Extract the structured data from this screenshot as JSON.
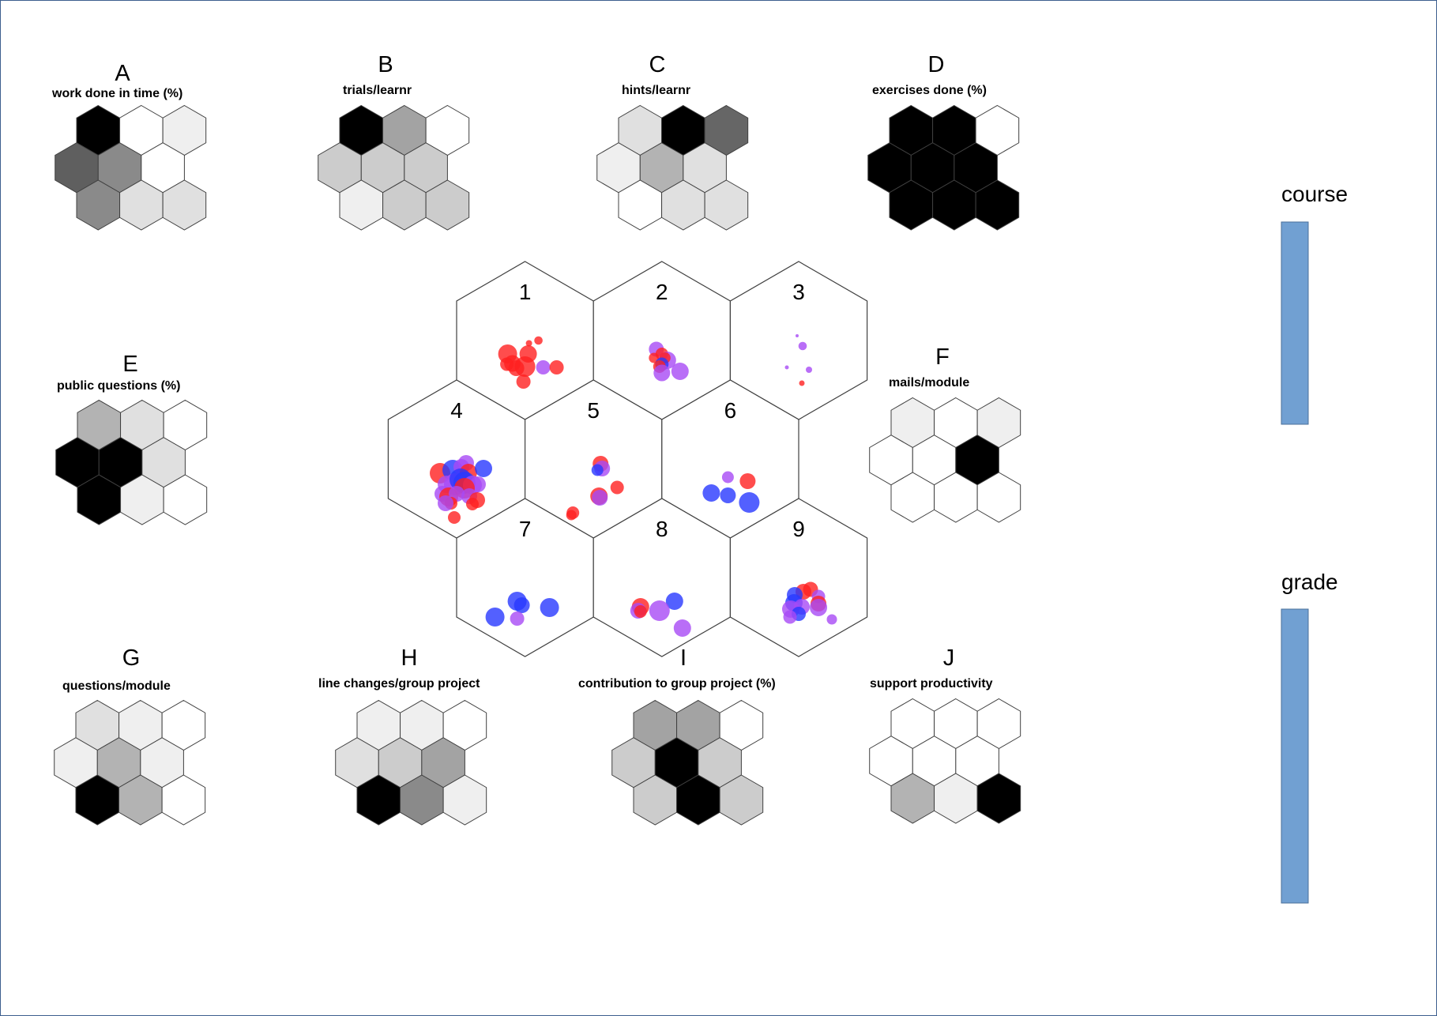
{
  "colors": {
    "hex_stroke": "#404040",
    "legend_bar_fill": "#71a0d2",
    "legend_bar_stroke": "#4a6f99",
    "frame_border": "#3d5f8e",
    "dot_red": "#ff2020",
    "dot_purple": "#a84af5",
    "dot_blue": "#2838ff"
  },
  "component_planes": [
    {
      "letter": "A",
      "caption": "work done in time (%)",
      "shades": [
        "#000000",
        "#ffffff",
        "#efefef",
        "#5f5f5f",
        "#8a8a8a",
        "#ffffff",
        "#8a8a8a",
        "#e0e0e0",
        "#e0e0e0"
      ]
    },
    {
      "letter": "B",
      "caption": "trials/learnr",
      "shades": [
        "#000000",
        "#a3a3a3",
        "#ffffff",
        "#cccccc",
        "#cccccc",
        "#cccccc",
        "#efefef",
        "#cccccc",
        "#cccccc"
      ]
    },
    {
      "letter": "C",
      "caption": "hints/learnr",
      "shades": [
        "#e0e0e0",
        "#000000",
        "#666666",
        "#efefef",
        "#b3b3b3",
        "#e0e0e0",
        "#ffffff",
        "#e0e0e0",
        "#e0e0e0"
      ]
    },
    {
      "letter": "D",
      "caption": "exercises done (%)",
      "shades": [
        "#000000",
        "#000000",
        "#ffffff",
        "#000000",
        "#000000",
        "#000000",
        "#000000",
        "#000000",
        "#000000"
      ]
    },
    {
      "letter": "E",
      "caption": "public questions (%)",
      "shades": [
        "#b3b3b3",
        "#e0e0e0",
        "#ffffff",
        "#000000",
        "#000000",
        "#e0e0e0",
        "#000000",
        "#efefef",
        "#ffffff"
      ]
    },
    {
      "letter": "F",
      "caption": "mails/module",
      "shades": [
        "#efefef",
        "#ffffff",
        "#efefef",
        "#ffffff",
        "#ffffff",
        "#000000",
        "#ffffff",
        "#ffffff",
        "#ffffff"
      ]
    },
    {
      "letter": "G",
      "caption": "questions/module",
      "shades": [
        "#e0e0e0",
        "#efefef",
        "#ffffff",
        "#efefef",
        "#b3b3b3",
        "#efefef",
        "#000000",
        "#b3b3b3",
        "#ffffff"
      ]
    },
    {
      "letter": "H",
      "caption": "line changes/group project",
      "shades": [
        "#efefef",
        "#efefef",
        "#ffffff",
        "#e0e0e0",
        "#cccccc",
        "#a3a3a3",
        "#000000",
        "#8a8a8a",
        "#efefef"
      ]
    },
    {
      "letter": "I",
      "caption": "contribution to group project (%)",
      "shades": [
        "#a3a3a3",
        "#a3a3a3",
        "#ffffff",
        "#cccccc",
        "#000000",
        "#cccccc",
        "#cccccc",
        "#000000",
        "#cccccc"
      ]
    },
    {
      "letter": "J",
      "caption": "support productivity",
      "shades": [
        "#ffffff",
        "#ffffff",
        "#ffffff",
        "#ffffff",
        "#ffffff",
        "#ffffff",
        "#b3b3b3",
        "#efefef",
        "#000000"
      ]
    }
  ],
  "som_map": {
    "cells": [
      {
        "number": "1",
        "dots": [
          {
            "dx": 0.17,
            "dy": 0.0,
            "r": 0.053,
            "c": "red"
          },
          {
            "dx": 0.05,
            "dy": 0.035,
            "r": 0.04,
            "c": "red"
          },
          {
            "dx": -0.22,
            "dy": 0.17,
            "r": 0.12,
            "c": "red"
          },
          {
            "dx": 0.04,
            "dy": 0.17,
            "r": 0.11,
            "c": "red"
          },
          {
            "dx": -0.16,
            "dy": 0.29,
            "r": 0.105,
            "c": "red"
          },
          {
            "dx": -0.23,
            "dy": 0.3,
            "r": 0.085,
            "c": "red"
          },
          {
            "dx": -0.11,
            "dy": 0.35,
            "r": 0.1,
            "c": "red"
          },
          {
            "dx": 0.0,
            "dy": 0.33,
            "r": 0.13,
            "c": "red"
          },
          {
            "dx": 0.23,
            "dy": 0.34,
            "r": 0.09,
            "c": "purple"
          },
          {
            "dx": 0.4,
            "dy": 0.34,
            "r": 0.09,
            "c": "red"
          },
          {
            "dx": -0.02,
            "dy": 0.52,
            "r": 0.09,
            "c": "red"
          }
        ]
      },
      {
        "number": "2",
        "dots": [
          {
            "dx": -0.07,
            "dy": 0.11,
            "r": 0.095,
            "c": "purple"
          },
          {
            "dx": 0.0,
            "dy": 0.17,
            "r": 0.08,
            "c": "red"
          },
          {
            "dx": -0.1,
            "dy": 0.22,
            "r": 0.065,
            "c": "red"
          },
          {
            "dx": 0.07,
            "dy": 0.25,
            "r": 0.11,
            "c": "purple"
          },
          {
            "dx": 0.04,
            "dy": 0.22,
            "r": 0.07,
            "c": "red"
          },
          {
            "dx": 0.0,
            "dy": 0.3,
            "r": 0.085,
            "c": "blue"
          },
          {
            "dx": -0.03,
            "dy": 0.33,
            "r": 0.08,
            "c": "red"
          },
          {
            "dx": 0.0,
            "dy": 0.41,
            "r": 0.105,
            "c": "purple"
          },
          {
            "dx": 0.23,
            "dy": 0.39,
            "r": 0.11,
            "c": "purple"
          }
        ]
      },
      {
        "number": "3",
        "dots": [
          {
            "dx": -0.02,
            "dy": -0.06,
            "r": 0.02,
            "c": "purple"
          },
          {
            "dx": 0.05,
            "dy": 0.07,
            "r": 0.053,
            "c": "purple"
          },
          {
            "dx": -0.15,
            "dy": 0.34,
            "r": 0.025,
            "c": "purple"
          },
          {
            "dx": 0.13,
            "dy": 0.37,
            "r": 0.04,
            "c": "purple"
          },
          {
            "dx": 0.04,
            "dy": 0.54,
            "r": 0.035,
            "c": "red"
          }
        ]
      },
      {
        "number": "4",
        "dots": [
          {
            "dx": -0.21,
            "dy": 0.18,
            "r": 0.13,
            "c": "red"
          },
          {
            "dx": -0.05,
            "dy": 0.14,
            "r": 0.13,
            "c": "blue"
          },
          {
            "dx": 0.12,
            "dy": 0.05,
            "r": 0.1,
            "c": "purple"
          },
          {
            "dx": 0.06,
            "dy": 0.1,
            "r": 0.1,
            "c": "purple"
          },
          {
            "dx": 0.15,
            "dy": 0.17,
            "r": 0.11,
            "c": "red"
          },
          {
            "dx": 0.34,
            "dy": 0.12,
            "r": 0.11,
            "c": "blue"
          },
          {
            "dx": -0.13,
            "dy": 0.32,
            "r": 0.11,
            "c": "purple"
          },
          {
            "dx": -0.02,
            "dy": 0.32,
            "r": 0.14,
            "c": "purple"
          },
          {
            "dx": 0.05,
            "dy": 0.26,
            "r": 0.14,
            "c": "blue"
          },
          {
            "dx": 0.1,
            "dy": 0.3,
            "r": 0.14,
            "c": "blue"
          },
          {
            "dx": 0.2,
            "dy": 0.33,
            "r": 0.12,
            "c": "purple"
          },
          {
            "dx": 0.27,
            "dy": 0.32,
            "r": 0.1,
            "c": "purple"
          },
          {
            "dx": 0.1,
            "dy": 0.37,
            "r": 0.13,
            "c": "red"
          },
          {
            "dx": -0.18,
            "dy": 0.44,
            "r": 0.1,
            "c": "purple"
          },
          {
            "dx": -0.1,
            "dy": 0.48,
            "r": 0.12,
            "c": "red"
          },
          {
            "dx": 0.0,
            "dy": 0.44,
            "r": 0.1,
            "c": "purple"
          },
          {
            "dx": 0.16,
            "dy": 0.47,
            "r": 0.1,
            "c": "purple"
          },
          {
            "dx": -0.07,
            "dy": 0.56,
            "r": 0.08,
            "c": "red"
          },
          {
            "dx": -0.14,
            "dy": 0.56,
            "r": 0.1,
            "c": "purple"
          },
          {
            "dx": 0.26,
            "dy": 0.52,
            "r": 0.1,
            "c": "red"
          },
          {
            "dx": 0.2,
            "dy": 0.57,
            "r": 0.08,
            "c": "red"
          },
          {
            "dx": -0.03,
            "dy": 0.74,
            "r": 0.08,
            "c": "red"
          }
        ]
      },
      {
        "number": "5",
        "dots": [
          {
            "dx": 0.09,
            "dy": 0.06,
            "r": 0.1,
            "c": "red"
          },
          {
            "dx": 0.11,
            "dy": 0.12,
            "r": 0.1,
            "c": "purple"
          },
          {
            "dx": 0.05,
            "dy": 0.14,
            "r": 0.075,
            "c": "blue"
          },
          {
            "dx": 0.3,
            "dy": 0.36,
            "r": 0.085,
            "c": "red"
          },
          {
            "dx": 0.07,
            "dy": 0.47,
            "r": 0.11,
            "c": "red"
          },
          {
            "dx": 0.08,
            "dy": 0.49,
            "r": 0.1,
            "c": "purple"
          },
          {
            "dx": -0.26,
            "dy": 0.68,
            "r": 0.08,
            "c": "red"
          },
          {
            "dx": -0.28,
            "dy": 0.71,
            "r": 0.065,
            "c": "red"
          }
        ]
      },
      {
        "number": "6",
        "dots": [
          {
            "dx": -0.03,
            "dy": 0.23,
            "r": 0.075,
            "c": "purple"
          },
          {
            "dx": 0.22,
            "dy": 0.28,
            "r": 0.1,
            "c": "red"
          },
          {
            "dx": -0.24,
            "dy": 0.43,
            "r": 0.11,
            "c": "blue"
          },
          {
            "dx": -0.03,
            "dy": 0.46,
            "r": 0.1,
            "c": "blue"
          },
          {
            "dx": 0.24,
            "dy": 0.55,
            "r": 0.13,
            "c": "blue"
          }
        ]
      },
      {
        "number": "7",
        "dots": [
          {
            "dx": -0.1,
            "dy": 0.3,
            "r": 0.12,
            "c": "blue"
          },
          {
            "dx": -0.04,
            "dy": 0.35,
            "r": 0.1,
            "c": "blue"
          },
          {
            "dx": 0.31,
            "dy": 0.38,
            "r": 0.12,
            "c": "blue"
          },
          {
            "dx": -0.38,
            "dy": 0.5,
            "r": 0.12,
            "c": "blue"
          },
          {
            "dx": -0.1,
            "dy": 0.52,
            "r": 0.09,
            "c": "purple"
          }
        ]
      },
      {
        "number": "8",
        "dots": [
          {
            "dx": 0.16,
            "dy": 0.3,
            "r": 0.11,
            "c": "blue"
          },
          {
            "dx": -0.27,
            "dy": 0.37,
            "r": 0.11,
            "c": "red"
          },
          {
            "dx": -0.3,
            "dy": 0.42,
            "r": 0.1,
            "c": "purple"
          },
          {
            "dx": -0.27,
            "dy": 0.43,
            "r": 0.08,
            "c": "red"
          },
          {
            "dx": -0.03,
            "dy": 0.42,
            "r": 0.13,
            "c": "purple"
          },
          {
            "dx": 0.26,
            "dy": 0.64,
            "r": 0.11,
            "c": "purple"
          }
        ]
      },
      {
        "number": "9",
        "dots": [
          {
            "dx": 0.15,
            "dy": 0.15,
            "r": 0.095,
            "c": "red"
          },
          {
            "dx": 0.06,
            "dy": 0.18,
            "r": 0.1,
            "c": "red"
          },
          {
            "dx": -0.05,
            "dy": 0.22,
            "r": 0.1,
            "c": "blue"
          },
          {
            "dx": 0.25,
            "dy": 0.24,
            "r": 0.085,
            "c": "purple"
          },
          {
            "dx": -0.06,
            "dy": 0.32,
            "r": 0.11,
            "c": "blue"
          },
          {
            "dx": 0.25,
            "dy": 0.33,
            "r": 0.1,
            "c": "red"
          },
          {
            "dx": 0.04,
            "dy": 0.37,
            "r": 0.1,
            "c": "purple"
          },
          {
            "dx": 0.25,
            "dy": 0.38,
            "r": 0.11,
            "c": "purple"
          },
          {
            "dx": -0.1,
            "dy": 0.4,
            "r": 0.11,
            "c": "purple"
          },
          {
            "dx": 0.0,
            "dy": 0.46,
            "r": 0.09,
            "c": "blue"
          },
          {
            "dx": -0.11,
            "dy": 0.5,
            "r": 0.085,
            "c": "purple"
          },
          {
            "dx": 0.42,
            "dy": 0.53,
            "r": 0.065,
            "c": "purple"
          }
        ]
      }
    ]
  },
  "legend": {
    "items": [
      {
        "label": "course"
      },
      {
        "label": "grade"
      }
    ]
  }
}
